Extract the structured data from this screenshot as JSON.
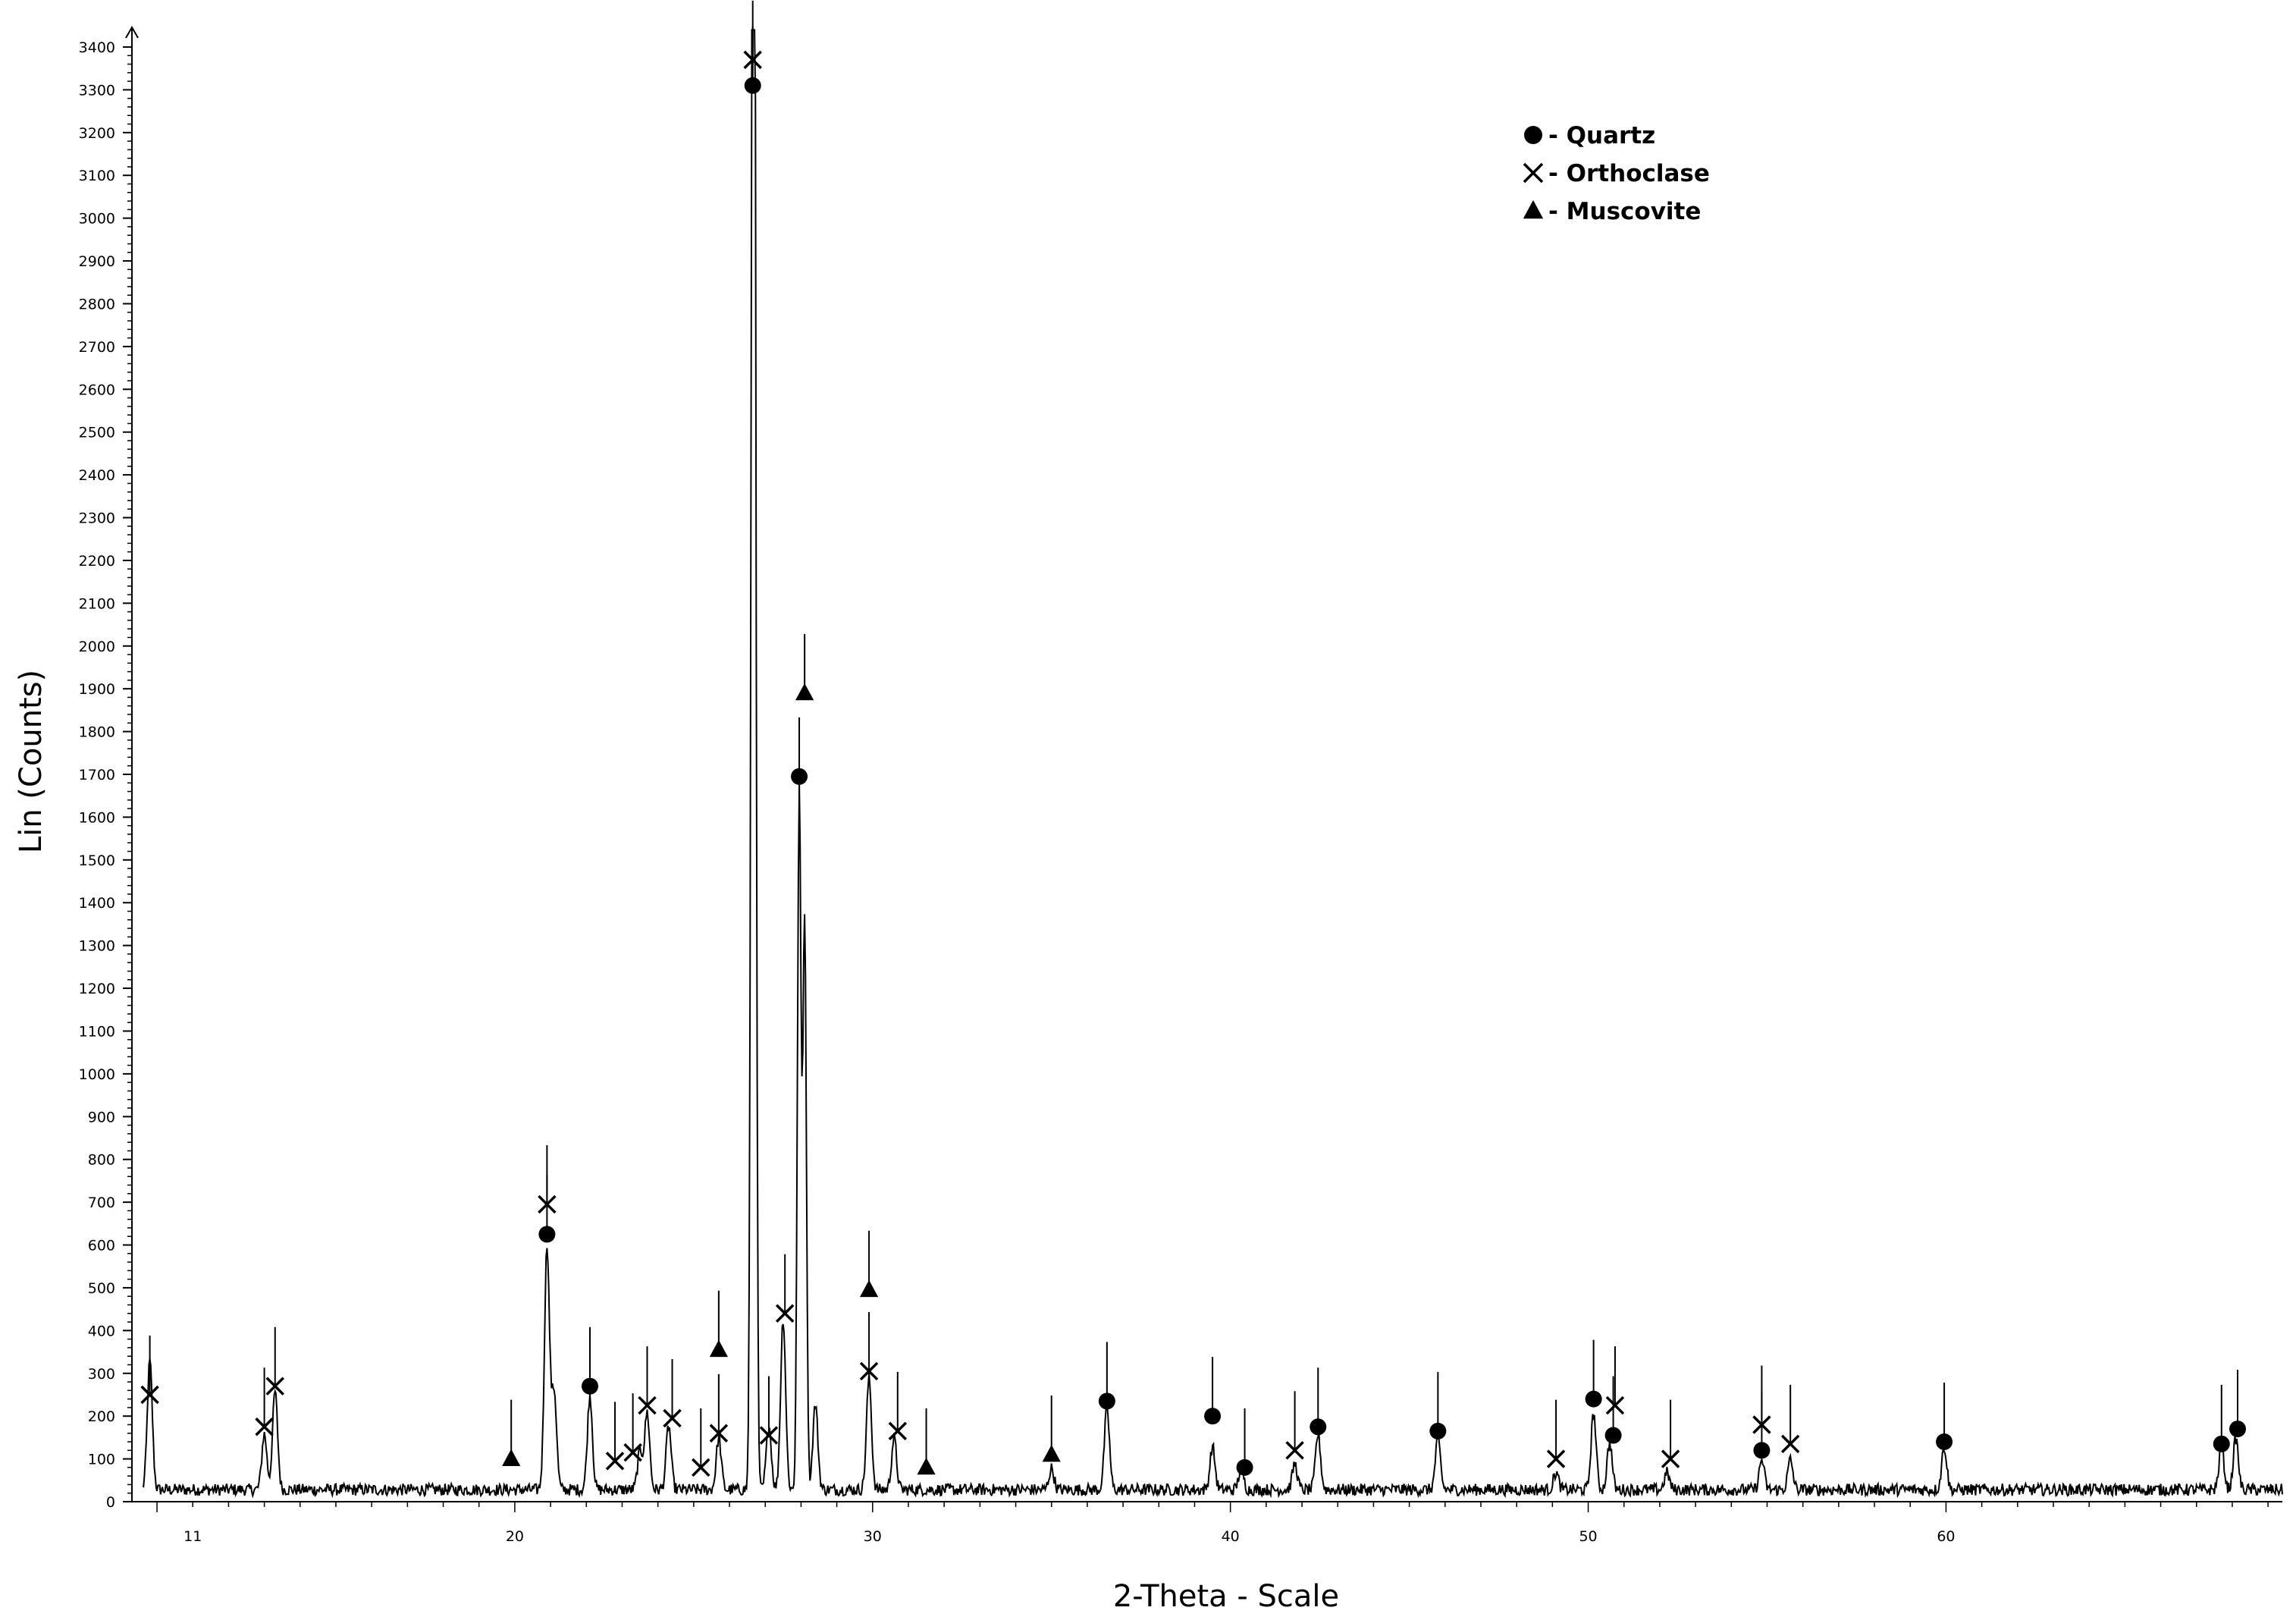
{
  "chart_data": {
    "type": "line",
    "xlabel": "2-Theta - Scale",
    "ylabel": "Lin (Counts)",
    "xlim": [
      9.3,
      69.4
    ],
    "ylim": [
      0,
      3400
    ],
    "x_ticks": [
      11,
      20,
      30,
      40,
      50,
      60
    ],
    "y_ticks": [
      0,
      100,
      200,
      300,
      400,
      500,
      600,
      700,
      800,
      900,
      1000,
      1100,
      1200,
      1300,
      1400,
      1500,
      1600,
      1700,
      1800,
      1900,
      2000,
      2100,
      2200,
      2300,
      2400,
      2500,
      2600,
      2700,
      2800,
      2900,
      3000,
      3100,
      3200,
      3300,
      3400
    ],
    "legend": {
      "position": "top-right",
      "entries": [
        {
          "marker": "circle",
          "label": "- Quartz"
        },
        {
          "marker": "cross",
          "label": "- Orthoclase"
        },
        {
          "marker": "triangle",
          "label": "- Muscovite"
        }
      ]
    },
    "pattern_peaks": [
      {
        "x": 9.8,
        "y": 300
      },
      {
        "x": 13.0,
        "y": 130
      },
      {
        "x": 13.3,
        "y": 230
      },
      {
        "x": 20.9,
        "y": 570
      },
      {
        "x": 21.1,
        "y": 230
      },
      {
        "x": 22.1,
        "y": 220
      },
      {
        "x": 23.5,
        "y": 90
      },
      {
        "x": 23.7,
        "y": 180
      },
      {
        "x": 24.3,
        "y": 150
      },
      {
        "x": 25.7,
        "y": 120
      },
      {
        "x": 26.65,
        "y": 3300
      },
      {
        "x": 26.7,
        "y": 2480
      },
      {
        "x": 27.1,
        "y": 150
      },
      {
        "x": 27.5,
        "y": 400
      },
      {
        "x": 27.95,
        "y": 1630
      },
      {
        "x": 28.1,
        "y": 1340
      },
      {
        "x": 28.4,
        "y": 200
      },
      {
        "x": 29.9,
        "y": 260
      },
      {
        "x": 30.6,
        "y": 120
      },
      {
        "x": 35.0,
        "y": 50
      },
      {
        "x": 36.55,
        "y": 190
      },
      {
        "x": 39.5,
        "y": 100
      },
      {
        "x": 40.3,
        "y": 50
      },
      {
        "x": 41.8,
        "y": 60
      },
      {
        "x": 42.45,
        "y": 130
      },
      {
        "x": 45.8,
        "y": 120
      },
      {
        "x": 49.1,
        "y": 40
      },
      {
        "x": 50.15,
        "y": 180
      },
      {
        "x": 50.6,
        "y": 110
      },
      {
        "x": 52.2,
        "y": 40
      },
      {
        "x": 54.85,
        "y": 70
      },
      {
        "x": 55.65,
        "y": 70
      },
      {
        "x": 59.95,
        "y": 100
      },
      {
        "x": 67.7,
        "y": 100
      },
      {
        "x": 68.1,
        "y": 120
      }
    ],
    "series": [
      {
        "name": "- Quartz",
        "marker": "circle",
        "points": [
          {
            "x": 20.9,
            "y": 625
          },
          {
            "x": 22.1,
            "y": 270
          },
          {
            "x": 26.65,
            "y": 3310
          },
          {
            "x": 27.95,
            "y": 1695
          },
          {
            "x": 36.55,
            "y": 235
          },
          {
            "x": 39.5,
            "y": 200
          },
          {
            "x": 40.4,
            "y": 80
          },
          {
            "x": 42.45,
            "y": 175
          },
          {
            "x": 45.8,
            "y": 165
          },
          {
            "x": 50.15,
            "y": 240
          },
          {
            "x": 50.7,
            "y": 155
          },
          {
            "x": 54.85,
            "y": 120
          },
          {
            "x": 59.95,
            "y": 140
          },
          {
            "x": 67.7,
            "y": 135
          },
          {
            "x": 68.15,
            "y": 170
          }
        ]
      },
      {
        "name": "- Orthoclase",
        "marker": "cross",
        "points": [
          {
            "x": 9.8,
            "y": 250
          },
          {
            "x": 13.0,
            "y": 175
          },
          {
            "x": 13.3,
            "y": 270
          },
          {
            "x": 20.9,
            "y": 695
          },
          {
            "x": 22.8,
            "y": 95
          },
          {
            "x": 23.3,
            "y": 115
          },
          {
            "x": 23.7,
            "y": 225
          },
          {
            "x": 24.4,
            "y": 195
          },
          {
            "x": 25.2,
            "y": 80
          },
          {
            "x": 25.7,
            "y": 160
          },
          {
            "x": 26.65,
            "y": 3370
          },
          {
            "x": 27.1,
            "y": 155
          },
          {
            "x": 27.55,
            "y": 440
          },
          {
            "x": 29.9,
            "y": 305
          },
          {
            "x": 30.7,
            "y": 165
          },
          {
            "x": 41.8,
            "y": 120
          },
          {
            "x": 49.1,
            "y": 100
          },
          {
            "x": 50.75,
            "y": 225
          },
          {
            "x": 52.3,
            "y": 100
          },
          {
            "x": 54.85,
            "y": 180
          },
          {
            "x": 55.65,
            "y": 135
          }
        ]
      },
      {
        "name": "- Muscovite",
        "marker": "triangle",
        "points": [
          {
            "x": 19.9,
            "y": 100
          },
          {
            "x": 25.7,
            "y": 355
          },
          {
            "x": 28.1,
            "y": 1890
          },
          {
            "x": 29.9,
            "y": 495
          },
          {
            "x": 31.5,
            "y": 80
          },
          {
            "x": 35.0,
            "y": 110
          }
        ]
      }
    ]
  }
}
